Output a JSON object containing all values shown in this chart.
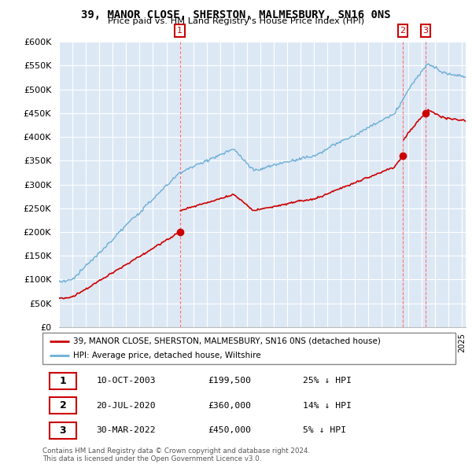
{
  "title": "39, MANOR CLOSE, SHERSTON, MALMESBURY, SN16 0NS",
  "subtitle": "Price paid vs. HM Land Registry's House Price Index (HPI)",
  "ylim": [
    0,
    600000
  ],
  "yticks": [
    0,
    50000,
    100000,
    150000,
    200000,
    250000,
    300000,
    350000,
    400000,
    450000,
    500000,
    550000,
    600000
  ],
  "ytick_labels": [
    "£0",
    "£50K",
    "£100K",
    "£150K",
    "£200K",
    "£250K",
    "£300K",
    "£350K",
    "£400K",
    "£450K",
    "£500K",
    "£550K",
    "£600K"
  ],
  "hpi_color": "#6baed6",
  "price_color": "#cc0000",
  "bg_color": "#dde8f5",
  "grid_color": "#ffffff",
  "transactions": [
    {
      "num": "1",
      "date": "10-OCT-2003",
      "price": 199500,
      "pct": "25% ↓ HPI",
      "x": 2004.0
    },
    {
      "num": "2",
      "date": "20-JUL-2020",
      "price": 360000,
      "pct": "14% ↓ HPI",
      "x": 2020.6
    },
    {
      "num": "3",
      "date": "30-MAR-2022",
      "price": 450000,
      "pct": "5% ↓ HPI",
      "x": 2022.3
    }
  ],
  "footer": "Contains HM Land Registry data © Crown copyright and database right 2024.\nThis data is licensed under the Open Government Licence v3.0.",
  "legend_line1": "39, MANOR CLOSE, SHERSTON, MALMESBURY, SN16 0NS (detached house)",
  "legend_line2": "HPI: Average price, detached house, Wiltshire",
  "table_rows": [
    [
      "1",
      "10-OCT-2003",
      "£199,500",
      "25% ↓ HPI"
    ],
    [
      "2",
      "20-JUL-2020",
      "£360,000",
      "14% ↓ HPI"
    ],
    [
      "3",
      "30-MAR-2022",
      "£450,000",
      "5% ↓ HPI"
    ]
  ],
  "xlim_min": 1995.0,
  "xlim_max": 2025.3
}
